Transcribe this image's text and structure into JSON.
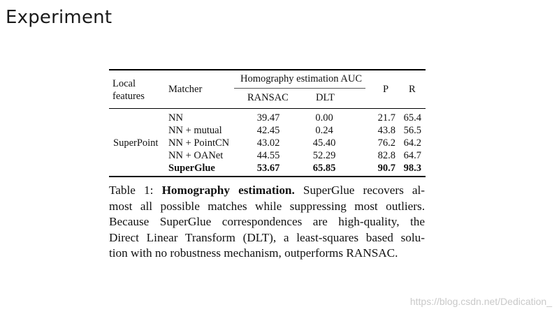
{
  "slide": {
    "title": "Experiment"
  },
  "table": {
    "headers": {
      "local_features_line1": "Local",
      "local_features_line2": "features",
      "matcher": "Matcher",
      "auc_group": "Homography estimation AUC",
      "ransac": "RANSAC",
      "dlt": "DLT",
      "p": "P",
      "r": "R"
    },
    "local_features_value": "SuperPoint",
    "rows": [
      {
        "matcher": "NN",
        "ransac": "39.47",
        "dlt": "0.00",
        "p": "21.7",
        "r": "65.4"
      },
      {
        "matcher": "NN + mutual",
        "ransac": "42.45",
        "dlt": "0.24",
        "p": "43.8",
        "r": "56.5"
      },
      {
        "matcher": "NN + PointCN",
        "ransac": "43.02",
        "dlt": "45.40",
        "p": "76.2",
        "r": "64.2"
      },
      {
        "matcher": "NN + OANet",
        "ransac": "44.55",
        "dlt": "52.29",
        "p": "82.8",
        "r": "64.7"
      },
      {
        "matcher": "SuperGlue",
        "ransac": "53.67",
        "dlt": "65.85",
        "p": "90.7",
        "r": "98.3"
      }
    ]
  },
  "caption": {
    "prefix": "Table 1: ",
    "bold": "Homography estimation.",
    "line1_rest": " SuperGlue recovers al-",
    "line2": "most all possible matches while suppressing most outliers.",
    "line3": "Because SuperGlue correspondences are high-quality, the",
    "line4": "Direct Linear Transform (DLT), a least-squares based solu-",
    "line5": "tion with no robustness mechanism, outperforms RANSAC."
  },
  "watermark": "https://blog.csdn.net/Dedication_"
}
